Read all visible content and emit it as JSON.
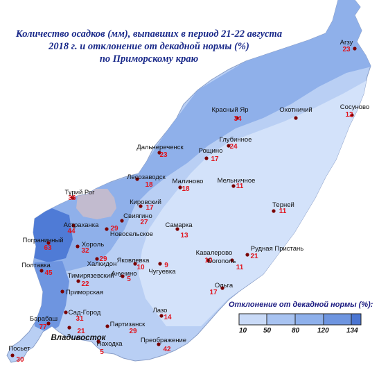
{
  "title_lines": [
    "Количество осадков (мм), выпавших в период 21-22 августа",
    "2018 г.  и отклонение от декадной нормы (%)",
    "по Приморскому краю"
  ],
  "legend": {
    "title": "Отклонение от декадной нормы (%):",
    "ticks": [
      "10",
      "50",
      "80",
      "120",
      "134"
    ],
    "colors": [
      "#c9daf7",
      "#a8c3f1",
      "#8eb0eb",
      "#6e95e0",
      "#4a75d2"
    ]
  },
  "colors": {
    "land_base": "#b9cff4",
    "land_dark": "#8fb0ea",
    "land_light": "#d3e2fa",
    "land_darkest": "#4f7bd6",
    "china_zone": "#c8bccc",
    "label_text": "#111111",
    "value_text": "#e0141e",
    "dot": "#7a0000"
  },
  "stations": [
    {
      "name": "Агзу",
      "value": "23"
    },
    {
      "name": "Красный Яр",
      "value": "34"
    },
    {
      "name": "Охотничий",
      "value": ""
    },
    {
      "name": "Сосуново",
      "value": "12"
    },
    {
      "name": "Глубинное",
      "value": "24"
    },
    {
      "name": "Дальнереченск",
      "value": "23"
    },
    {
      "name": "Рощино",
      "value": "17"
    },
    {
      "name": "Лесозаводск",
      "value": "18"
    },
    {
      "name": "Малиново",
      "value": "18"
    },
    {
      "name": "Мельничное",
      "value": "11"
    },
    {
      "name": "Турий Рог",
      "value": "36"
    },
    {
      "name": "Кировский",
      "value": "17"
    },
    {
      "name": "Терней",
      "value": "11"
    },
    {
      "name": "Свиягино",
      "value": "27"
    },
    {
      "name": "Астраханка",
      "value": "44"
    },
    {
      "name": "Новосельское",
      "value": "29"
    },
    {
      "name": "Самарка",
      "value": "13"
    },
    {
      "name": "Пограничный",
      "value": "63"
    },
    {
      "name": "Хороль",
      "value": "32"
    },
    {
      "name": "Рудная Пристань",
      "value": "21"
    },
    {
      "name": "Халкидон",
      "value": "29"
    },
    {
      "name": "Кавалерово",
      "value": "10"
    },
    {
      "name": "Яковлевка",
      "value": "10"
    },
    {
      "name": "Богополь",
      "value": "11"
    },
    {
      "name": "Полтавка",
      "value": "45"
    },
    {
      "name": "Чугуевка",
      "value": "9"
    },
    {
      "name": "Анучино",
      "value": "5"
    },
    {
      "name": "Тимирязевский",
      "value": "22"
    },
    {
      "name": "Ольга",
      "value": "17"
    },
    {
      "name": "Приморская",
      "value": ""
    },
    {
      "name": "Лазо",
      "value": "14"
    },
    {
      "name": "Сад-Город",
      "value": "31"
    },
    {
      "name": "Барабаш",
      "value": "77"
    },
    {
      "name": "Владивосток",
      "value": "21"
    },
    {
      "name": "Партизанск",
      "value": "29"
    },
    {
      "name": "Находка",
      "value": "5"
    },
    {
      "name": "Преображение",
      "value": "42"
    },
    {
      "name": "Посьет",
      "value": "30"
    }
  ]
}
